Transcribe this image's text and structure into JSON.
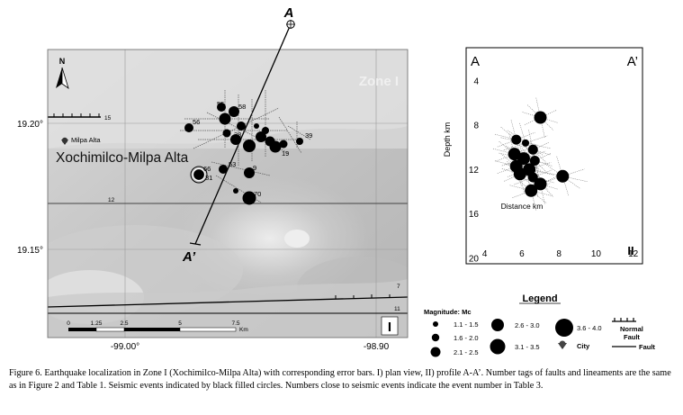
{
  "map": {
    "zone_label": "Zone I",
    "section_start": "A",
    "section_end": "A’",
    "panel_number": "I",
    "place_name": "Xochimilco-Milpa Alta",
    "city_name": "Milpa Alta",
    "north_label": "N",
    "lat_ticks": [
      "19.20°",
      "19.15°"
    ],
    "lon_ticks": [
      "-99.00°",
      "-98.90"
    ],
    "scale_ticks": [
      "0",
      "1.25",
      "2.5",
      "5",
      "7.5"
    ],
    "scale_unit": "Km",
    "fault_tags": [
      "15",
      "12",
      "7",
      "11"
    ],
    "events": [
      {
        "id": "1",
        "label": "55"
      },
      {
        "id": "2",
        "label": "58"
      },
      {
        "id": "3",
        "label": "56"
      },
      {
        "id": "4",
        "label": "39"
      },
      {
        "id": "5",
        "label": "9"
      },
      {
        "id": "6",
        "label": "53"
      },
      {
        "id": "7",
        "label": "66"
      },
      {
        "id": "8",
        "label": "31"
      },
      {
        "id": "9",
        "label": "70"
      },
      {
        "id": "10",
        "label": "19"
      },
      {
        "id": "11",
        "label": "38"
      }
    ]
  },
  "profile": {
    "left_label": "A",
    "right_label": "A’",
    "panel_number": "II",
    "ylabel": "Depth km",
    "xlabel": "Distance km",
    "yticks": [
      "4",
      "8",
      "12",
      "16",
      "20"
    ],
    "xticks": [
      "4",
      "6",
      "8",
      "10",
      "12"
    ]
  },
  "chart_data": {
    "type": "scatter",
    "xlabel": "Distance km",
    "ylabel": "Depth km",
    "xlim": [
      3,
      12.5
    ],
    "ylim": [
      1,
      20.5
    ],
    "y_inverted": true,
    "points": [
      {
        "x": 7.0,
        "y": 7.3,
        "mag": "2.6 - 3.0"
      },
      {
        "x": 5.7,
        "y": 9.3,
        "mag": "2.1 - 2.5"
      },
      {
        "x": 6.2,
        "y": 9.6,
        "mag": "1.6 - 2.0"
      },
      {
        "x": 6.6,
        "y": 10.2,
        "mag": "2.1 - 2.5"
      },
      {
        "x": 5.6,
        "y": 10.6,
        "mag": "2.6 - 3.0"
      },
      {
        "x": 6.1,
        "y": 11.0,
        "mag": "2.6 - 3.0"
      },
      {
        "x": 6.7,
        "y": 11.2,
        "mag": "2.1 - 2.5"
      },
      {
        "x": 5.7,
        "y": 11.7,
        "mag": "2.6 - 3.0"
      },
      {
        "x": 6.4,
        "y": 12.0,
        "mag": "2.6 - 3.0"
      },
      {
        "x": 5.9,
        "y": 12.4,
        "mag": "2.6 - 3.0"
      },
      {
        "x": 6.6,
        "y": 12.7,
        "mag": "2.1 - 2.5"
      },
      {
        "x": 8.2,
        "y": 12.6,
        "mag": "2.6 - 3.0"
      },
      {
        "x": 7.0,
        "y": 13.3,
        "mag": "2.6 - 3.0"
      },
      {
        "x": 6.5,
        "y": 13.9,
        "mag": "2.6 - 3.0"
      }
    ]
  },
  "legend": {
    "title": "Legend",
    "magnitude_title": "Magnitude: Mc",
    "mag_classes": [
      "1.1 - 1.5",
      "1.6 - 2.0",
      "2.1 - 2.5",
      "2.6 - 3.0",
      "3.1 - 3.5",
      "3.6 - 4.0"
    ],
    "normal_fault_line1": "Normal",
    "normal_fault_line2": "Fault",
    "city": "City",
    "fault": "Fault"
  },
  "caption": "Figure 6. Earthquake localization in Zone I (Xochimilco-Milpa Alta) with corresponding error bars. I) plan view, II) profile A-A’. Number tags of faults and lineaments are the same as in Figure 2 and Table 1. Seismic events indicated by black filled circles. Numbers close to seismic events indicate the event number in Table 3."
}
